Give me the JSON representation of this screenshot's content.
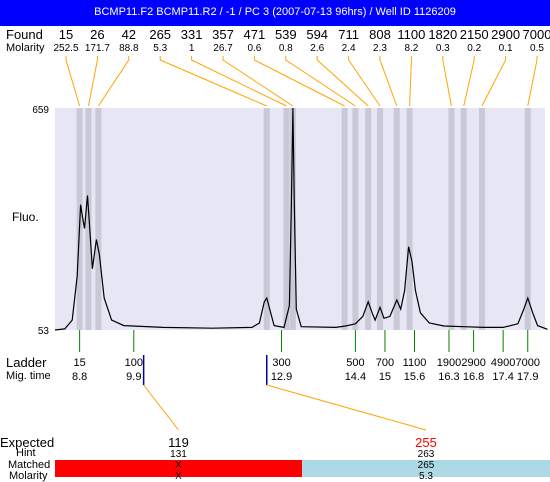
{
  "header": {
    "title": "BCMP11.F2  BCMP11.R2 / -1 / PC 3 (2007-07-13 96hrs) / Well ID 1126209"
  },
  "labels": {
    "found": "Found",
    "molarity": "Molarity",
    "fluo": "Fluo.",
    "ladder": "Ladder",
    "mig_time": "Mig. time",
    "expected": "Expected",
    "hint": "Hint",
    "matched": "Matched",
    "molarity_row": "Molarity"
  },
  "chart_data": {
    "type": "line",
    "title": "",
    "ylabel": "Fluo.",
    "xlabel": "Mig. time",
    "ylim": [
      53,
      659
    ],
    "y_tick_labels": [
      "659",
      "53"
    ],
    "found_peaks": [
      {
        "size": "15",
        "molarity": "252.5",
        "time": 8.8
      },
      {
        "size": "26",
        "molarity": "171.7",
        "time": 8.98
      },
      {
        "size": "42",
        "molarity": "88.8",
        "time": 9.18
      },
      {
        "size": "265",
        "molarity": "5.3",
        "time": 12.6
      },
      {
        "size": "331",
        "molarity": "1",
        "time": 13.0
      },
      {
        "size": "357",
        "molarity": "26.7",
        "time": 13.13
      },
      {
        "size": "471",
        "molarity": "0.6",
        "time": 14.18
      },
      {
        "size": "539",
        "molarity": "0.8",
        "time": 14.4
      },
      {
        "size": "594",
        "molarity": "2.6",
        "time": 14.66
      },
      {
        "size": "711",
        "molarity": "2.4",
        "time": 14.9
      },
      {
        "size": "808",
        "molarity": "2.3",
        "time": 15.24
      },
      {
        "size": "1100",
        "molarity": "8.2",
        "time": 15.5
      },
      {
        "size": "1820",
        "molarity": "0.3",
        "time": 16.35
      },
      {
        "size": "2150",
        "molarity": "0.2",
        "time": 16.6
      },
      {
        "size": "2900",
        "molarity": "0.1",
        "time": 16.97
      },
      {
        "size": "7000",
        "molarity": "0.5",
        "time": 17.9
      }
    ],
    "ladder": [
      {
        "size": "15",
        "time": "8.8"
      },
      {
        "size": "100",
        "time": "9.9"
      },
      {
        "size": "300",
        "time": "12.9"
      },
      {
        "size": "500",
        "time": "14.4"
      },
      {
        "size": "700",
        "time": "15"
      },
      {
        "size": "1100",
        "time": "15.6"
      },
      {
        "size": "1900",
        "time": "16.3"
      },
      {
        "size": "2900",
        "time": "16.8"
      },
      {
        "size": "4900",
        "time": "17.4"
      },
      {
        "size": "7000",
        "time": "17.9"
      }
    ],
    "trace": [
      [
        8.3,
        53
      ],
      [
        8.5,
        56
      ],
      [
        8.65,
        80
      ],
      [
        8.75,
        200
      ],
      [
        8.82,
        395
      ],
      [
        8.86,
        360
      ],
      [
        8.9,
        330
      ],
      [
        8.96,
        420
      ],
      [
        9.0,
        340
      ],
      [
        9.06,
        220
      ],
      [
        9.14,
        300
      ],
      [
        9.2,
        260
      ],
      [
        9.3,
        140
      ],
      [
        9.45,
        80
      ],
      [
        9.7,
        65
      ],
      [
        10.5,
        60
      ],
      [
        11.5,
        58
      ],
      [
        12.3,
        60
      ],
      [
        12.45,
        72
      ],
      [
        12.55,
        130
      ],
      [
        12.6,
        140
      ],
      [
        12.66,
        110
      ],
      [
        12.75,
        65
      ],
      [
        12.95,
        60
      ],
      [
        13.06,
        120
      ],
      [
        13.1,
        400
      ],
      [
        13.13,
        659
      ],
      [
        13.16,
        400
      ],
      [
        13.2,
        110
      ],
      [
        13.3,
        62
      ],
      [
        14.0,
        60
      ],
      [
        14.2,
        64
      ],
      [
        14.4,
        70
      ],
      [
        14.55,
        90
      ],
      [
        14.66,
        130
      ],
      [
        14.74,
        100
      ],
      [
        14.8,
        80
      ],
      [
        14.9,
        115
      ],
      [
        14.98,
        85
      ],
      [
        15.1,
        90
      ],
      [
        15.24,
        135
      ],
      [
        15.32,
        110
      ],
      [
        15.4,
        160
      ],
      [
        15.48,
        280
      ],
      [
        15.55,
        240
      ],
      [
        15.62,
        160
      ],
      [
        15.72,
        100
      ],
      [
        15.9,
        72
      ],
      [
        16.2,
        64
      ],
      [
        16.6,
        62
      ],
      [
        17.0,
        60
      ],
      [
        17.4,
        60
      ],
      [
        17.7,
        70
      ],
      [
        17.82,
        110
      ],
      [
        17.9,
        140
      ],
      [
        18.0,
        100
      ],
      [
        18.1,
        65
      ],
      [
        18.3,
        55
      ]
    ],
    "expected": [
      {
        "label": "119",
        "hint": "131",
        "matched": "X",
        "molarity": "X",
        "color": "#ff0000",
        "ladder_time": 10.1
      },
      {
        "label": "255",
        "hint": "263",
        "matched": "265",
        "molarity": "5.3",
        "color": "#add8e6",
        "ladder_time": 12.6
      }
    ],
    "colors": {
      "title_bar": "#0000ff",
      "plot_bg": "#e6e6f5",
      "peak_band": "#c8c8d7",
      "found_leader": "#ffa500",
      "ladder_tick": "#008000",
      "expected_tick": "#0000aa",
      "expected_red": "#ff0000"
    }
  }
}
